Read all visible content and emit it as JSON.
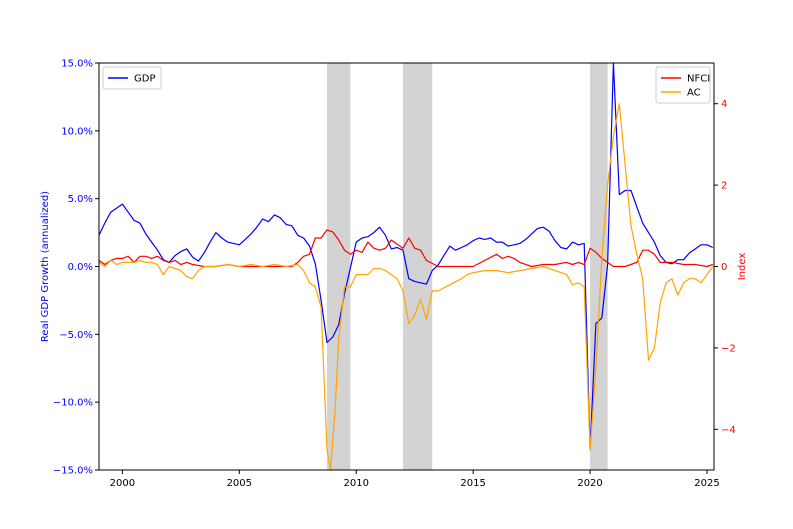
{
  "chart_data": {
    "type": "line",
    "title": "",
    "x_axis": {
      "range": [
        1999.0,
        2025.3
      ],
      "ticks": [
        2000,
        2005,
        2010,
        2015,
        2020,
        2025
      ],
      "tick_labels": [
        "2000",
        "2005",
        "2010",
        "2015",
        "2020",
        "2025"
      ]
    },
    "y_left": {
      "label": "Real GDP Growth (annualized)",
      "range": [
        -15,
        15
      ],
      "ticks": [
        -15,
        -10,
        -5,
        0,
        5,
        10,
        15
      ],
      "tick_labels": [
        "−15.0%",
        "−10.0%",
        "−5.0%",
        "0.0%",
        "5.0%",
        "10.0%",
        "15.0%"
      ],
      "color": "#0000ff"
    },
    "y_right": {
      "label": "Index",
      "range": [
        -5,
        5
      ],
      "ticks": [
        -4,
        -2,
        0,
        2,
        4
      ],
      "tick_labels": [
        "−4",
        "−2",
        "0",
        "2",
        "4"
      ],
      "color": "#ff0000"
    },
    "recessions": [
      [
        2008.75,
        2009.75
      ],
      [
        2012.0,
        2013.25
      ],
      [
        2020.0,
        2020.75
      ]
    ],
    "recession_color": "#d3d3d3",
    "legend_left": {
      "position": "upper left",
      "entries": [
        "GDP"
      ]
    },
    "legend_right": {
      "position": "upper right",
      "entries": [
        "NFCI",
        "AC"
      ]
    },
    "series": [
      {
        "name": "GDP",
        "axis": "left",
        "color": "#0000ff",
        "x": [
          1999.0,
          1999.25,
          1999.5,
          1999.75,
          2000.0,
          2000.25,
          2000.5,
          2000.75,
          2001.0,
          2001.25,
          2001.5,
          2001.75,
          2002.0,
          2002.25,
          2002.5,
          2002.75,
          2003.0,
          2003.25,
          2003.5,
          2003.75,
          2004.0,
          2004.25,
          2004.5,
          2004.75,
          2005.0,
          2005.25,
          2005.5,
          2005.75,
          2006.0,
          2006.25,
          2006.5,
          2006.75,
          2007.0,
          2007.25,
          2007.5,
          2007.75,
          2008.0,
          2008.25,
          2008.5,
          2008.75,
          2009.0,
          2009.25,
          2009.5,
          2009.75,
          2010.0,
          2010.25,
          2010.5,
          2010.75,
          2011.0,
          2011.25,
          2011.5,
          2011.75,
          2012.0,
          2012.25,
          2012.5,
          2012.75,
          2013.0,
          2013.25,
          2013.5,
          2013.75,
          2014.0,
          2014.25,
          2014.5,
          2014.75,
          2015.0,
          2015.25,
          2015.5,
          2015.75,
          2016.0,
          2016.25,
          2016.5,
          2016.75,
          2017.0,
          2017.25,
          2017.5,
          2017.75,
          2018.0,
          2018.25,
          2018.5,
          2018.75,
          2019.0,
          2019.25,
          2019.5,
          2019.75,
          2020.0,
          2020.25,
          2020.5,
          2020.75,
          2021.0,
          2021.25,
          2021.5,
          2021.75,
          2022.0,
          2022.25,
          2022.5,
          2022.75,
          2023.0,
          2023.25,
          2023.5,
          2023.75,
          2024.0,
          2024.25,
          2024.5,
          2024.75,
          2025.0,
          2025.25
        ],
        "y": [
          2.3,
          3.2,
          4.0,
          4.3,
          4.6,
          4.0,
          3.4,
          3.2,
          2.4,
          1.8,
          1.2,
          0.5,
          0.3,
          0.8,
          1.1,
          1.3,
          0.7,
          0.4,
          1.0,
          1.8,
          2.5,
          2.1,
          1.8,
          1.7,
          1.6,
          2.0,
          2.4,
          2.9,
          3.5,
          3.3,
          3.8,
          3.6,
          3.1,
          3.0,
          2.3,
          2.1,
          1.5,
          0.2,
          -2.5,
          -5.6,
          -5.2,
          -4.3,
          -2.0,
          -0.1,
          1.8,
          2.1,
          2.2,
          2.5,
          2.9,
          2.3,
          1.3,
          1.4,
          1.2,
          -0.9,
          -1.1,
          -1.2,
          -1.3,
          -0.3,
          0.1,
          0.8,
          1.5,
          1.2,
          1.4,
          1.6,
          1.9,
          2.1,
          2.0,
          2.1,
          1.8,
          1.8,
          1.5,
          1.6,
          1.7,
          2.0,
          2.4,
          2.8,
          2.9,
          2.6,
          1.9,
          1.4,
          1.3,
          1.8,
          1.6,
          1.7,
          -13.5,
          -4.2,
          -3.8,
          0.1,
          15.0,
          5.3,
          5.6,
          5.6,
          4.4,
          3.2,
          2.5,
          1.8,
          0.8,
          0.3,
          0.2,
          0.5,
          0.5,
          1.0,
          1.3,
          1.6,
          1.6,
          1.4
        ]
      },
      {
        "name": "NFCI",
        "axis": "right",
        "color": "#ff0000",
        "x": [
          1999.0,
          1999.25,
          1999.5,
          1999.75,
          2000.0,
          2000.25,
          2000.5,
          2000.75,
          2001.0,
          2001.25,
          2001.5,
          2001.75,
          2002.0,
          2002.25,
          2002.5,
          2002.75,
          2003.0,
          2003.5,
          2004.0,
          2004.5,
          2005.0,
          2005.5,
          2006.0,
          2006.5,
          2007.0,
          2007.25,
          2007.5,
          2007.75,
          2008.0,
          2008.25,
          2008.5,
          2008.75,
          2009.0,
          2009.25,
          2009.5,
          2009.75,
          2010.0,
          2010.25,
          2010.5,
          2010.75,
          2011.0,
          2011.25,
          2011.5,
          2011.75,
          2012.0,
          2012.25,
          2012.5,
          2012.75,
          2013.0,
          2013.5,
          2014.0,
          2014.5,
          2015.0,
          2015.5,
          2016.0,
          2016.25,
          2016.5,
          2016.75,
          2017.0,
          2017.5,
          2018.0,
          2018.5,
          2019.0,
          2019.25,
          2019.5,
          2019.75,
          2020.0,
          2020.25,
          2020.5,
          2020.75,
          2021.0,
          2021.5,
          2022.0,
          2022.25,
          2022.5,
          2022.75,
          2023.0,
          2023.5,
          2024.0,
          2024.5,
          2025.0,
          2025.25
        ],
        "y": [
          0.15,
          0.05,
          0.15,
          0.2,
          0.2,
          0.25,
          0.1,
          0.25,
          0.25,
          0.2,
          0.25,
          0.15,
          0.1,
          0.15,
          0.05,
          0.1,
          0.05,
          0.0,
          0.0,
          0.05,
          0.0,
          0.0,
          0.0,
          0.0,
          0.0,
          0.0,
          0.1,
          0.25,
          0.3,
          0.7,
          0.7,
          0.9,
          0.85,
          0.65,
          0.4,
          0.3,
          0.4,
          0.35,
          0.6,
          0.45,
          0.4,
          0.45,
          0.65,
          0.55,
          0.45,
          0.7,
          0.45,
          0.4,
          0.15,
          0.0,
          0.0,
          0.0,
          0.0,
          0.15,
          0.3,
          0.2,
          0.25,
          0.2,
          0.1,
          0.0,
          0.05,
          0.05,
          0.1,
          0.05,
          0.1,
          0.05,
          0.45,
          0.35,
          0.2,
          0.1,
          0.0,
          0.0,
          0.1,
          0.4,
          0.4,
          0.3,
          0.1,
          0.1,
          0.05,
          0.05,
          0.0,
          0.05
        ]
      },
      {
        "name": "AC",
        "axis": "right",
        "color": "#ffa500",
        "x": [
          1999.0,
          1999.25,
          1999.5,
          1999.75,
          2000.0,
          2000.25,
          2000.5,
          2000.75,
          2001.0,
          2001.25,
          2001.5,
          2001.75,
          2002.0,
          2002.25,
          2002.5,
          2002.75,
          2003.0,
          2003.25,
          2003.5,
          2004.0,
          2004.5,
          2005.0,
          2005.5,
          2006.0,
          2006.5,
          2007.0,
          2007.5,
          2007.75,
          2008.0,
          2008.25,
          2008.5,
          2008.75,
          2008.9,
          2009.1,
          2009.25,
          2009.5,
          2009.75,
          2010.0,
          2010.5,
          2010.75,
          2011.0,
          2011.25,
          2011.5,
          2011.75,
          2012.0,
          2012.25,
          2012.5,
          2012.75,
          2013.0,
          2013.25,
          2013.5,
          2014.0,
          2014.5,
          2014.75,
          2015.0,
          2015.5,
          2016.0,
          2016.5,
          2017.0,
          2017.5,
          2018.0,
          2018.5,
          2019.0,
          2019.25,
          2019.5,
          2019.75,
          2020.0,
          2020.25,
          2020.5,
          2020.75,
          2021.0,
          2021.25,
          2021.5,
          2021.75,
          2022.0,
          2022.25,
          2022.5,
          2022.75,
          2023.0,
          2023.25,
          2023.5,
          2023.75,
          2024.0,
          2024.25,
          2024.5,
          2024.75,
          2025.0,
          2025.25
        ],
        "y": [
          0.1,
          0.0,
          0.15,
          0.05,
          0.1,
          0.1,
          0.1,
          0.15,
          0.1,
          0.1,
          0.05,
          -0.2,
          0.0,
          -0.05,
          -0.1,
          -0.25,
          -0.3,
          -0.1,
          0.0,
          0.0,
          0.05,
          0.0,
          0.05,
          0.0,
          0.05,
          0.0,
          0.05,
          -0.1,
          -0.4,
          -0.5,
          -1.0,
          -4.5,
          -5.0,
          -3.5,
          -1.8,
          -0.5,
          -0.5,
          -0.2,
          -0.2,
          -0.05,
          -0.05,
          -0.1,
          -0.2,
          -0.3,
          -0.6,
          -1.4,
          -1.2,
          -0.8,
          -1.3,
          -0.6,
          -0.6,
          -0.45,
          -0.3,
          -0.2,
          -0.15,
          -0.1,
          -0.1,
          -0.15,
          -0.1,
          -0.05,
          0.0,
          -0.1,
          -0.2,
          -0.45,
          -0.4,
          -0.5,
          -4.5,
          -2.5,
          0.2,
          2.0,
          3.2,
          4.0,
          2.5,
          1.0,
          0.3,
          -0.3,
          -2.3,
          -2.0,
          -0.9,
          -0.4,
          -0.3,
          -0.7,
          -0.4,
          -0.3,
          -0.3,
          -0.4,
          -0.2,
          0.0
        ]
      }
    ]
  }
}
